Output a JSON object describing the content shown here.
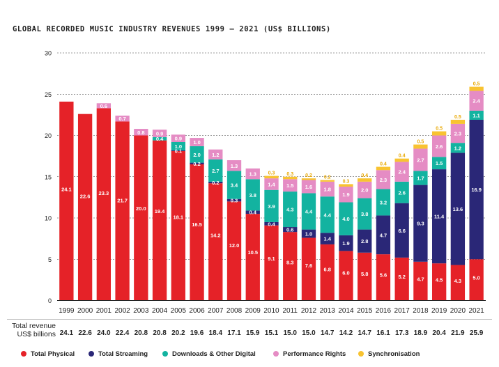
{
  "title": "GLOBAL RECORDED MUSIC INDUSTRY REVENUES 1999 – 2021 (US$ BILLIONS)",
  "total_label": [
    "Total revenue",
    "US$ billions"
  ],
  "colors": {
    "Total Physical": "#e52228",
    "Total Streaming": "#2a2777",
    "Downloads & Other Digital": "#13b3a0",
    "Performance Rights": "#e58cc4",
    "Synchronisation": "#f8c331"
  },
  "chart_data": {
    "type": "bar",
    "stacked": true,
    "categories": [
      "1999",
      "2000",
      "2001",
      "2002",
      "2003",
      "2004",
      "2005",
      "2006",
      "2007",
      "2008",
      "2009",
      "2010",
      "2011",
      "2012",
      "2013",
      "2014",
      "2015",
      "2016",
      "2017",
      "2018",
      "2019",
      "2020",
      "2021"
    ],
    "series": [
      {
        "name": "Total Physical",
        "values": [
          24.1,
          22.6,
          23.3,
          21.7,
          20.0,
          19.4,
          18.1,
          16.5,
          14.2,
          12.0,
          10.5,
          9.1,
          8.3,
          7.6,
          6.8,
          6.0,
          5.8,
          5.6,
          5.2,
          4.7,
          4.5,
          4.3,
          5.0
        ]
      },
      {
        "name": "Total Streaming",
        "values": [
          0,
          0,
          0,
          0,
          0,
          0,
          0.1,
          0.2,
          0.2,
          0.3,
          0.4,
          0.4,
          0.6,
          1.0,
          1.4,
          1.9,
          2.8,
          4.7,
          6.6,
          9.3,
          11.4,
          13.6,
          16.9
        ]
      },
      {
        "name": "Downloads & Other Digital",
        "values": [
          0,
          0,
          0,
          0,
          0,
          0.4,
          1.0,
          2.0,
          2.7,
          3.4,
          3.8,
          3.9,
          4.3,
          4.4,
          4.4,
          4.0,
          3.8,
          3.2,
          2.6,
          1.7,
          1.5,
          1.2,
          1.1
        ]
      },
      {
        "name": "Performance Rights",
        "values": [
          0,
          0,
          0.6,
          0.7,
          0.8,
          0.9,
          0.9,
          1.0,
          1.2,
          1.3,
          1.3,
          1.4,
          1.5,
          1.6,
          1.8,
          1.9,
          2.0,
          2.3,
          2.4,
          2.7,
          2.6,
          2.3,
          2.4
        ]
      },
      {
        "name": "Synchronisation",
        "values": [
          0,
          0,
          0,
          0,
          0,
          0,
          0,
          0,
          0,
          0,
          0,
          0.3,
          0.3,
          0.2,
          0.2,
          0.3,
          0.4,
          0.4,
          0.4,
          0.5,
          0.5,
          0.5,
          0.5
        ]
      }
    ],
    "totals": [
      "24.1",
      "22.6",
      "24.0",
      "22.4",
      "20.8",
      "20.8",
      "20.2",
      "19.6",
      "18.4",
      "17.1",
      "15.9",
      "15.1",
      "15.0",
      "15.0",
      "14.7",
      "14.2",
      "14.7",
      "16.1",
      "17.3",
      "18.9",
      "20.4",
      "21.9",
      "25.9"
    ],
    "ylim": [
      0,
      30
    ],
    "yticks": [
      "0",
      "5",
      "10",
      "15",
      "20",
      "25",
      "30"
    ],
    "grid": true,
    "legend_position": "bottom"
  }
}
